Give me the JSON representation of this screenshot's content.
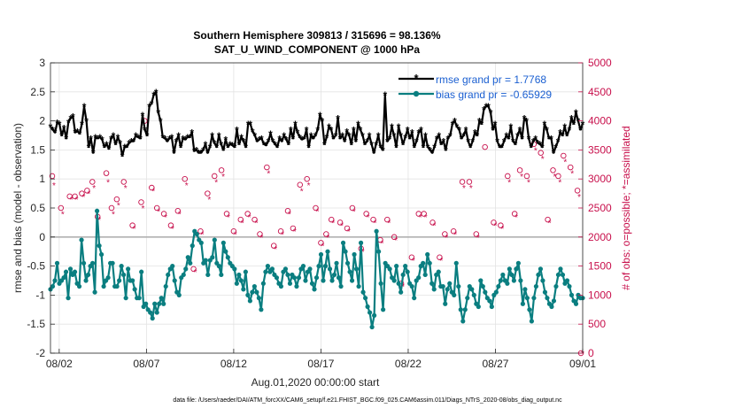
{
  "chart_data": {
    "type": "line",
    "title_line1": "Southern Hemisphere 309813 / 315696 = 98.136%",
    "title_line2": "SAT_U_WIND_COMPONENT @ 1000 hPa",
    "xlabel": "Aug.01,2020 00:00:00 start",
    "ylabel_left": "rmse and bias (model - observation)",
    "ylabel_right": "# of obs: o=possible; *=assimilated",
    "xlim": [
      0.5,
      31
    ],
    "ylim_left": [
      -2,
      3
    ],
    "ylim_right": [
      0,
      5000
    ],
    "x_ticks": [
      1,
      6,
      11,
      16,
      21,
      26,
      31
    ],
    "x_tick_labels": [
      "08/02",
      "08/07",
      "08/12",
      "08/17",
      "08/22",
      "08/27",
      "09/01"
    ],
    "y_ticks_left": [
      -2,
      -1.5,
      -1,
      -0.5,
      0,
      0.5,
      1,
      1.5,
      2,
      2.5,
      3
    ],
    "y_tick_labels_left": [
      "-2",
      "-1.5",
      "-1",
      "-0.5",
      "0",
      "0.5",
      "1",
      "1.5",
      "2",
      "2.5",
      "3"
    ],
    "y_ticks_right": [
      0,
      500,
      1000,
      1500,
      2000,
      2500,
      3000,
      3500,
      4000,
      4500,
      5000
    ],
    "y_tick_labels_right": [
      "0",
      "500",
      "1000",
      "1500",
      "2000",
      "2500",
      "3000",
      "3500",
      "4000",
      "4500",
      "5000"
    ],
    "legend_location": "top-right",
    "grid": true,
    "zero_line": true,
    "series": [
      {
        "name": "rmse grand pr = 1.7768",
        "axis": "left",
        "color": "#000000",
        "marker": "asterisk",
        "values": [
          1.9,
          1.85,
          1.8,
          1.97,
          1.95,
          1.75,
          1.88,
          1.7,
          1.98,
          2.05,
          2.08,
          1.8,
          1.82,
          1.78,
          1.95,
          2.25,
          2.0,
          1.55,
          1.7,
          1.45,
          1.72,
          1.7,
          1.72,
          1.68,
          1.55,
          1.6,
          1.52,
          1.7,
          1.75,
          1.6,
          1.72,
          1.62,
          1.4,
          1.55,
          1.55,
          1.62,
          1.65,
          1.65,
          1.75,
          1.72,
          1.7,
          2.1,
          1.85,
          1.75,
          2.25,
          2.3,
          2.45,
          2.5,
          2.15,
          2.0,
          1.72,
          1.7,
          1.65,
          1.7,
          1.72,
          1.45,
          1.65,
          1.75,
          1.55,
          1.7,
          1.68,
          1.72,
          1.72,
          1.8,
          1.48,
          1.5,
          1.45,
          1.45,
          1.5,
          1.6,
          1.45,
          1.55,
          1.75,
          1.62,
          1.55,
          1.75,
          1.6,
          1.5,
          1.68,
          1.55,
          1.6,
          1.58,
          1.55,
          1.85,
          1.6,
          1.72,
          1.65,
          1.55,
          1.95,
          1.95,
          1.82,
          1.75,
          1.65,
          1.68,
          1.7,
          1.6,
          1.58,
          1.65,
          1.78,
          1.65,
          1.6,
          1.55,
          1.7,
          1.65,
          1.75,
          1.68,
          1.6,
          1.85,
          1.7,
          1.95,
          1.8,
          1.72,
          1.68,
          1.7,
          1.85,
          1.55,
          1.75,
          1.7,
          1.75,
          1.85,
          2.1,
          2.0,
          1.6,
          1.72,
          1.9,
          1.85,
          1.7,
          1.75,
          2.05,
          1.7,
          1.75,
          1.65,
          1.82,
          1.75,
          1.6,
          1.85,
          1.65,
          1.95,
          1.85,
          1.75,
          1.6,
          1.65,
          1.75,
          1.6,
          1.45,
          1.6,
          1.75,
          1.55,
          1.5,
          2.45,
          1.65,
          1.7,
          1.9,
          1.75,
          1.55,
          1.9,
          1.75,
          1.6,
          1.72,
          1.85,
          1.7,
          1.8,
          1.55,
          1.65,
          1.8,
          1.85,
          1.55,
          1.75,
          1.55,
          1.5,
          1.45,
          1.55,
          1.7,
          1.75,
          1.6,
          1.65,
          1.5,
          1.7,
          1.75,
          1.95,
          2.0,
          1.9,
          1.85,
          1.7,
          1.75,
          1.85,
          1.65,
          1.55,
          1.65,
          1.8,
          1.75,
          2.0,
          1.95,
          2.2,
          2.25,
          2.25,
          2.15,
          1.85,
          1.95,
          1.65,
          1.55,
          1.55,
          1.65,
          1.75,
          1.7,
          1.9,
          1.65,
          1.6,
          1.75,
          1.85,
          1.7,
          2.05,
          2.0,
          1.7,
          1.55,
          1.65,
          1.7,
          1.62,
          1.6,
          1.55,
          1.95,
          1.85,
          1.7,
          1.7,
          1.45,
          1.55,
          1.65,
          1.8,
          1.75,
          1.9,
          1.75,
          1.85,
          2.05,
          1.95,
          2.15,
          2.0,
          1.85,
          1.95
        ]
      },
      {
        "name": "bias grand pr = -0.65929",
        "axis": "left",
        "color": "#0a7e80",
        "marker": "circle",
        "values": [
          -0.9,
          -0.85,
          -0.75,
          -0.45,
          -0.8,
          -0.75,
          -0.7,
          -0.6,
          -1.05,
          -0.55,
          -0.65,
          -0.6,
          -0.8,
          -0.85,
          -0.05,
          -0.45,
          -0.75,
          -0.65,
          -0.5,
          -0.45,
          -0.95,
          0.45,
          -0.15,
          -0.3,
          -0.85,
          -0.75,
          -0.7,
          -0.45,
          -0.45,
          -0.85,
          -0.85,
          -0.75,
          -0.5,
          -0.65,
          -1.05,
          -0.55,
          -0.75,
          -0.75,
          -0.9,
          -1.05,
          -1.05,
          -0.6,
          -1.2,
          -1.15,
          -1.25,
          -1.3,
          -1.4,
          -1.15,
          -1.3,
          -1.15,
          -1.05,
          -1.15,
          -0.85,
          -0.65,
          -0.55,
          -0.5,
          -0.75,
          -0.95,
          -1.0,
          -0.7,
          -0.65,
          -0.55,
          -0.35,
          -0.45,
          -0.15,
          0.1,
          0.05,
          -0.05,
          -0.1,
          -0.45,
          -0.4,
          -0.65,
          -0.4,
          -0.35,
          -0.05,
          -0.45,
          -0.5,
          -0.65,
          -0.1,
          -0.25,
          -0.35,
          -0.45,
          -0.5,
          -0.55,
          -0.8,
          -0.65,
          -0.75,
          -0.9,
          -0.6,
          -1.0,
          -1.1,
          -0.95,
          -0.85,
          -0.95,
          -1.05,
          -1.25,
          -0.8,
          -0.6,
          -0.5,
          -0.6,
          -0.55,
          -0.65,
          -0.7,
          -0.8,
          -0.85,
          -0.6,
          -0.55,
          -0.65,
          -0.8,
          -0.65,
          -0.7,
          -0.85,
          -0.7,
          -0.55,
          -0.5,
          -0.75,
          -0.6,
          -0.55,
          -0.8,
          -0.9,
          -0.7,
          -0.5,
          -0.3,
          -0.75,
          -0.5,
          -0.25,
          -0.55,
          -0.75,
          -0.65,
          -0.45,
          -0.7,
          -0.85,
          -0.1,
          -0.25,
          -0.45,
          -0.6,
          -0.75,
          -0.3,
          -0.55,
          -0.85,
          -0.1,
          -0.95,
          -1.05,
          -1.2,
          -1.3,
          -1.55,
          -1.35,
          0.1,
          -0.25,
          -0.8,
          -1.25,
          -0.45,
          -0.5,
          -0.55,
          -0.7,
          -0.75,
          -0.5,
          -0.8,
          -0.95,
          -0.65,
          -0.5,
          -0.6,
          -0.8,
          -0.85,
          -1.05,
          -0.75,
          -0.7,
          -0.5,
          -0.45,
          -0.65,
          -0.3,
          -0.45,
          -0.8,
          -0.9,
          -0.65,
          -0.6,
          -0.85,
          -0.85,
          -1.15,
          -0.9,
          -0.8,
          -0.95,
          -1.0,
          -0.45,
          -0.85,
          -1.25,
          -1.45,
          -1.25,
          -1.05,
          -0.85,
          -0.9,
          -1.0,
          -1.15,
          -1.2,
          -0.75,
          -0.85,
          -0.95,
          -1.05,
          -1.1,
          -1.2,
          -1.0,
          -0.95,
          -0.85,
          -0.75,
          -0.65,
          -0.75,
          -0.8,
          -0.55,
          -0.65,
          -0.75,
          -0.55,
          -0.45,
          -0.75,
          -1.15,
          -0.9,
          -1.05,
          -1.25,
          -1.45,
          -1.05,
          -0.85,
          -0.65,
          -0.55,
          -0.75,
          -0.95,
          -1.05,
          -1.15,
          -1.2,
          -1.1,
          -0.85,
          -0.65,
          -0.55,
          -0.65,
          -0.8,
          -0.75,
          -0.85,
          -1.0,
          -1.1,
          -1.15,
          -1.0,
          -1.05,
          -1.05
        ]
      },
      {
        "name": "possible",
        "axis": "right",
        "color": "#c8104c",
        "marker": "open-circle",
        "points": [
          [
            0.6,
            3050
          ],
          [
            1.1,
            2500
          ],
          [
            1.6,
            2700
          ],
          [
            1.9,
            2700
          ],
          [
            2.3,
            2750
          ],
          [
            2.6,
            2800
          ],
          [
            2.9,
            2950
          ],
          [
            3.2,
            2350
          ],
          [
            3.7,
            3100
          ],
          [
            4.0,
            2500
          ],
          [
            4.3,
            2650
          ],
          [
            4.7,
            2950
          ],
          [
            5.2,
            2200
          ],
          [
            5.7,
            2600
          ],
          [
            5.9,
            4000
          ],
          [
            6.3,
            2850
          ],
          [
            6.6,
            2500
          ],
          [
            7.0,
            2400
          ],
          [
            7.4,
            2200
          ],
          [
            7.8,
            2450
          ],
          [
            8.2,
            3000
          ],
          [
            8.7,
            1450
          ],
          [
            9.1,
            2100
          ],
          [
            9.5,
            2750
          ],
          [
            9.9,
            3050
          ],
          [
            10.3,
            3150
          ],
          [
            10.6,
            2400
          ],
          [
            11.0,
            2100
          ],
          [
            11.4,
            2300
          ],
          [
            11.8,
            2400
          ],
          [
            12.2,
            2300
          ],
          [
            12.5,
            2050
          ],
          [
            12.9,
            3200
          ],
          [
            13.3,
            1850
          ],
          [
            13.7,
            2100
          ],
          [
            14.1,
            2450
          ],
          [
            14.4,
            2150
          ],
          [
            14.8,
            2900
          ],
          [
            15.2,
            3000
          ],
          [
            15.7,
            2500
          ],
          [
            16.0,
            1900
          ],
          [
            16.3,
            2050
          ],
          [
            16.6,
            2300
          ],
          [
            17.1,
            2250
          ],
          [
            17.5,
            2150
          ],
          [
            17.8,
            2500
          ],
          [
            18.3,
            1800
          ],
          [
            18.6,
            2400
          ],
          [
            19.0,
            2300
          ],
          [
            19.4,
            1950
          ],
          [
            19.8,
            2300
          ],
          [
            20.2,
            2000
          ],
          [
            20.6,
            1200
          ],
          [
            21.2,
            1650
          ],
          [
            21.6,
            2400
          ],
          [
            21.9,
            2400
          ],
          [
            22.4,
            2250
          ],
          [
            22.8,
            1650
          ],
          [
            23.1,
            2050
          ],
          [
            23.6,
            2100
          ],
          [
            24.1,
            2950
          ],
          [
            24.5,
            2950
          ],
          [
            24.9,
            2050
          ],
          [
            25.4,
            3550
          ],
          [
            25.9,
            2250
          ],
          [
            26.3,
            2200
          ],
          [
            26.7,
            3050
          ],
          [
            27.1,
            2400
          ],
          [
            27.4,
            3150
          ],
          [
            27.8,
            3050
          ],
          [
            28.2,
            3600
          ],
          [
            28.6,
            3450
          ],
          [
            29.0,
            2300
          ],
          [
            29.3,
            3150
          ],
          [
            29.6,
            3050
          ],
          [
            29.9,
            3400
          ],
          [
            30.3,
            3200
          ],
          [
            30.7,
            2800
          ],
          [
            30.9,
            0
          ]
        ]
      },
      {
        "name": "assimilated",
        "axis": "right",
        "color": "#c8104c",
        "marker": "asterisk",
        "points": [
          [
            0.7,
            2900
          ],
          [
            1.2,
            2400
          ],
          [
            1.7,
            2650
          ],
          [
            2.0,
            2650
          ],
          [
            2.4,
            2700
          ],
          [
            2.7,
            2750
          ],
          [
            3.0,
            2850
          ],
          [
            3.3,
            2300
          ],
          [
            3.8,
            2950
          ],
          [
            4.1,
            2400
          ],
          [
            4.4,
            2550
          ],
          [
            4.8,
            2850
          ],
          [
            5.3,
            2150
          ],
          [
            5.8,
            2500
          ],
          [
            6.4,
            2800
          ],
          [
            6.7,
            2450
          ],
          [
            7.1,
            2350
          ],
          [
            7.5,
            2150
          ],
          [
            7.9,
            2400
          ],
          [
            8.3,
            2900
          ],
          [
            8.8,
            1400
          ],
          [
            9.2,
            2050
          ],
          [
            9.6,
            2650
          ],
          [
            10.0,
            2950
          ],
          [
            10.4,
            3050
          ],
          [
            10.7,
            2350
          ],
          [
            11.1,
            2050
          ],
          [
            11.5,
            2250
          ],
          [
            11.9,
            2350
          ],
          [
            12.3,
            2250
          ],
          [
            12.6,
            2000
          ],
          [
            13.0,
            3100
          ],
          [
            13.4,
            1800
          ],
          [
            13.8,
            2050
          ],
          [
            14.2,
            2400
          ],
          [
            14.5,
            2100
          ],
          [
            14.9,
            2800
          ],
          [
            15.3,
            2900
          ],
          [
            15.8,
            2450
          ],
          [
            16.1,
            1850
          ],
          [
            16.4,
            2000
          ],
          [
            16.7,
            2250
          ],
          [
            17.2,
            2200
          ],
          [
            17.6,
            2100
          ],
          [
            17.9,
            2450
          ],
          [
            18.4,
            1750
          ],
          [
            18.7,
            2350
          ],
          [
            19.1,
            2250
          ],
          [
            19.5,
            1900
          ],
          [
            19.9,
            2250
          ],
          [
            20.3,
            1950
          ],
          [
            20.7,
            1150
          ],
          [
            21.3,
            1600
          ],
          [
            21.7,
            2350
          ],
          [
            22.0,
            2350
          ],
          [
            22.5,
            2200
          ],
          [
            22.9,
            1600
          ],
          [
            23.2,
            2000
          ],
          [
            23.7,
            2050
          ],
          [
            24.2,
            2850
          ],
          [
            24.6,
            2850
          ],
          [
            25.0,
            2000
          ],
          [
            26.0,
            2200
          ],
          [
            26.4,
            2150
          ],
          [
            26.8,
            2950
          ],
          [
            27.2,
            2350
          ],
          [
            27.5,
            3050
          ],
          [
            27.9,
            2950
          ],
          [
            28.3,
            3500
          ],
          [
            28.7,
            3350
          ],
          [
            29.1,
            2250
          ],
          [
            29.4,
            3050
          ],
          [
            29.7,
            2950
          ],
          [
            30.0,
            3300
          ],
          [
            30.4,
            3100
          ],
          [
            30.8,
            2700
          ],
          [
            31.0,
            0
          ]
        ]
      }
    ]
  },
  "footer_text": "data file: /Users/raeder/DAI/ATM_forcXX/CAM6_setup/f.e21.FHIST_BGC.f09_025.CAM6assim.011/Diags_NTrS_2020-08/obs_diag_output.nc"
}
